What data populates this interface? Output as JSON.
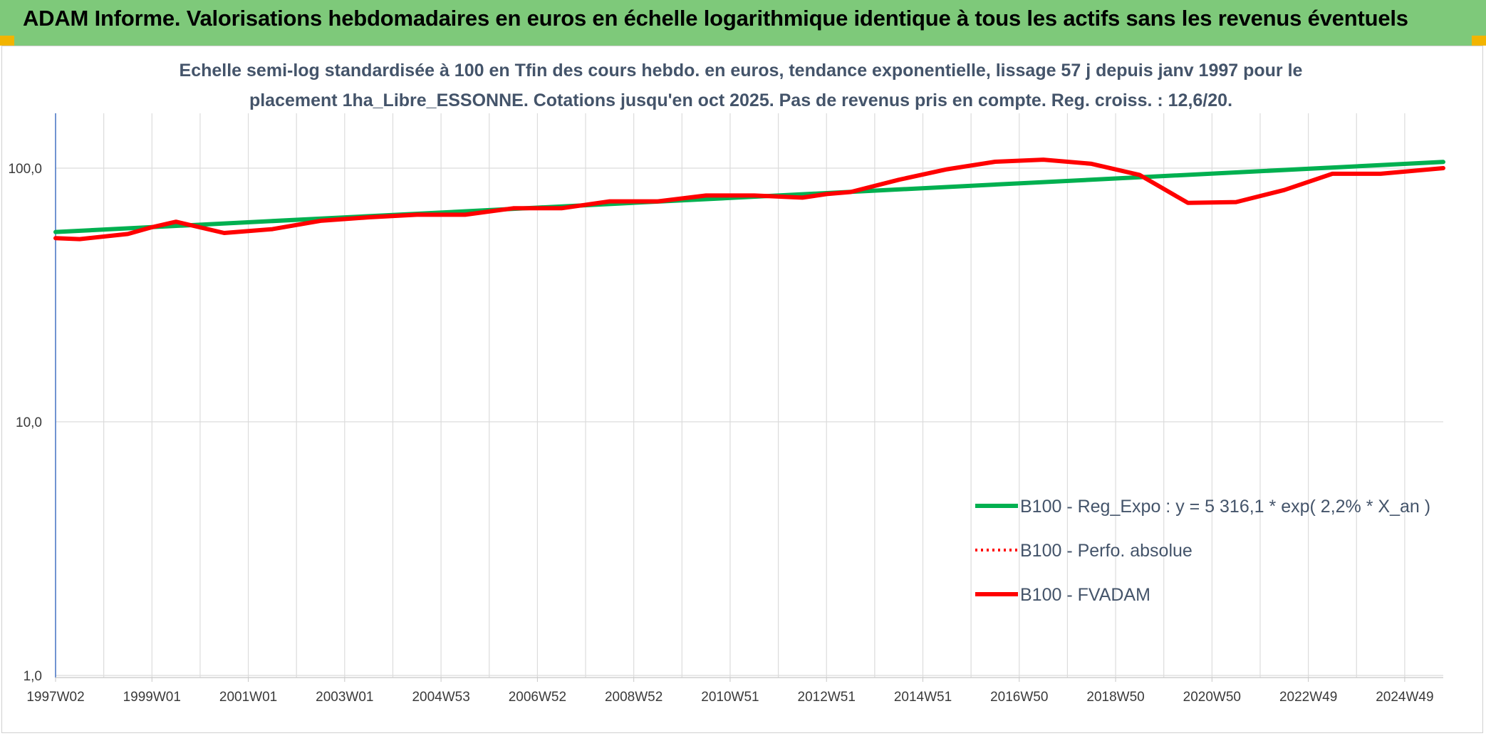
{
  "header": {
    "title": "ADAM Informe. Valorisations hebdomadaires en euros en échelle logarithmique identique à tous les actifs sans les revenus éventuels",
    "background": "#7ec97a",
    "corner_color": "#f2b400"
  },
  "chart_data": {
    "type": "line",
    "title_line1": "Echelle semi-log standardisée à 100 en Tfin des cours hebdo. en euros, tendance exponentielle, lissage 57 j depuis janv 1997 pour le",
    "title_line2": "placement 1ha_Libre_ESSONNE. Cotations jusqu'en oct 2025. Pas de revenus pris en compte. Reg. croiss. : 12,6/20.",
    "y_scale": "log",
    "ylim": [
      1,
      200
    ],
    "grid": true,
    "y_ticks": [
      {
        "value": 1,
        "label": "1,0"
      },
      {
        "value": 10,
        "label": "10,0"
      },
      {
        "value": 100,
        "label": "100,0"
      }
    ],
    "x_range": [
      1997.0,
      2025.8
    ],
    "x_ticks": [
      {
        "x": 1997.0,
        "label": "1997W02"
      },
      {
        "x": 1999.0,
        "label": "1999W01"
      },
      {
        "x": 2001.0,
        "label": "2001W01"
      },
      {
        "x": 2003.0,
        "label": "2003W01"
      },
      {
        "x": 2005.0,
        "label": "2004W53"
      },
      {
        "x": 2007.0,
        "label": "2006W52"
      },
      {
        "x": 2009.0,
        "label": "2008W52"
      },
      {
        "x": 2011.0,
        "label": "2010W51"
      },
      {
        "x": 2013.0,
        "label": "2012W51"
      },
      {
        "x": 2015.0,
        "label": "2014W51"
      },
      {
        "x": 2017.0,
        "label": "2016W50"
      },
      {
        "x": 2019.0,
        "label": "2018W50"
      },
      {
        "x": 2021.0,
        "label": "2020W50"
      },
      {
        "x": 2023.0,
        "label": "2022W49"
      },
      {
        "x": 2025.0,
        "label": "2024W49"
      }
    ],
    "legend_position": "bottom-right",
    "series": [
      {
        "name": "B100 - Reg_Expo : y = 5 316,1 * exp( 2,2% *  X_an )",
        "color": "#00b050",
        "style": "solid",
        "x": [
          1997.0,
          2025.8
        ],
        "y": [
          56.0,
          105.8
        ]
      },
      {
        "name": "B100 - Perfo. absolue",
        "color": "#ff0000",
        "style": "dotted",
        "x": [],
        "y": []
      },
      {
        "name": "B100 - FVADAM",
        "color": "#ff0000",
        "style": "solid",
        "x": [
          1997.0,
          1997.5,
          1998.5,
          1999.0,
          1999.5,
          2000.5,
          2001.5,
          2002.5,
          2003.5,
          2004.5,
          2005.5,
          2006.5,
          2007.5,
          2008.5,
          2009.5,
          2010.5,
          2011.5,
          2012.5,
          2013.0,
          2013.5,
          2014.5,
          2015.5,
          2016.5,
          2017.5,
          2018.5,
          2019.5,
          2020.5,
          2021.5,
          2022.5,
          2023.5,
          2024.5,
          2025.8
        ],
        "y": [
          53.0,
          52.5,
          55.0,
          58.5,
          61.5,
          55.5,
          57.5,
          62.0,
          64.0,
          65.5,
          65.5,
          69.5,
          69.5,
          74.0,
          74.0,
          78.0,
          78.0,
          76.5,
          79.0,
          80.5,
          90.0,
          99.0,
          106.0,
          108.0,
          104.0,
          94.0,
          73.0,
          73.5,
          82.0,
          95.0,
          95.0,
          100.0
        ]
      }
    ]
  }
}
